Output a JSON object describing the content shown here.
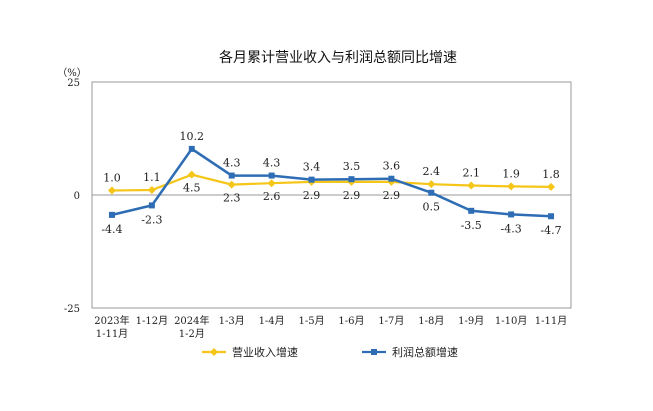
{
  "chart_data": {
    "type": "line",
    "title": "各月累计营业收入与利润总额同比增速",
    "ylabel": "（%）",
    "ylim": [
      -25,
      25
    ],
    "yticks": [
      "25",
      "0",
      "-25"
    ],
    "categories": [
      [
        "2023年",
        "1-11月"
      ],
      [
        "1-12月"
      ],
      [
        "2024年",
        "1-2月"
      ],
      [
        "1-3月"
      ],
      [
        "1-4月"
      ],
      [
        "1-5月"
      ],
      [
        "1-6月"
      ],
      [
        "1-7月"
      ],
      [
        "1-8月"
      ],
      [
        "1-9月"
      ],
      [
        "1-10月"
      ],
      [
        "1-11月"
      ]
    ],
    "series": [
      {
        "name": "营业收入增速",
        "color": "#F5C518",
        "marker": "diamond",
        "values": [
          1.0,
          1.1,
          4.5,
          2.3,
          2.6,
          2.9,
          2.9,
          2.9,
          2.4,
          2.1,
          1.9,
          1.8
        ],
        "labels": [
          "1.0",
          "1.1",
          "4.5",
          "2.3",
          "2.6",
          "2.9",
          "2.9",
          "2.9",
          "2.4",
          "2.1",
          "1.9",
          "1.8"
        ]
      },
      {
        "name": "利润总额增速",
        "color": "#2E6DB4",
        "marker": "square",
        "values": [
          -4.4,
          -2.3,
          10.2,
          4.3,
          4.3,
          3.4,
          3.5,
          3.6,
          0.5,
          -3.5,
          -4.3,
          -4.7
        ],
        "labels": [
          "-4.4",
          "-2.3",
          "10.2",
          "4.3",
          "4.3",
          "3.4",
          "3.5",
          "3.6",
          "0.5",
          "-3.5",
          "-4.3",
          "-4.7"
        ]
      }
    ]
  }
}
